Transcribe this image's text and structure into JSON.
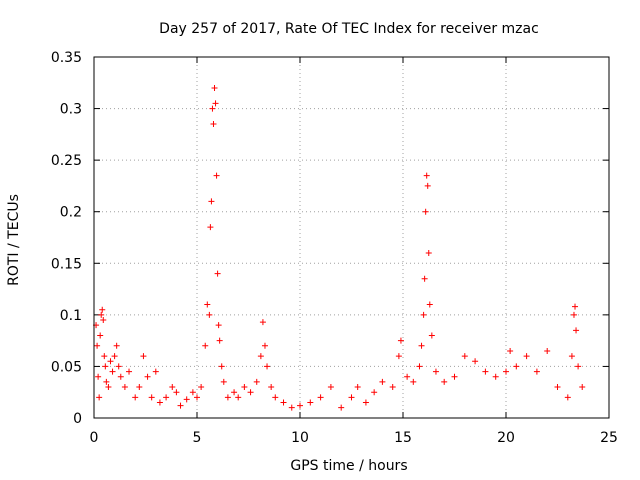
{
  "chart_data": {
    "type": "scatter",
    "title": "Day 257 of 2017, Rate Of TEC Index for receiver mzac",
    "xlabel": "GPS time / hours",
    "ylabel": "ROTI / TECUs",
    "xlim": [
      0,
      25
    ],
    "ylim": [
      0,
      0.35
    ],
    "xticks": [
      "0",
      "5",
      "10",
      "15",
      "20",
      "25"
    ],
    "yticks": [
      "0",
      "0.05",
      "0.1",
      "0.15",
      "0.2",
      "0.25",
      "0.3",
      "0.35"
    ],
    "grid": true,
    "marker": "+",
    "color": "#ff0000",
    "series": [
      {
        "name": "ROTI",
        "points": [
          [
            0.1,
            0.09
          ],
          [
            0.15,
            0.07
          ],
          [
            0.2,
            0.04
          ],
          [
            0.25,
            0.02
          ],
          [
            0.3,
            0.08
          ],
          [
            0.35,
            0.1
          ],
          [
            0.4,
            0.105
          ],
          [
            0.45,
            0.095
          ],
          [
            0.5,
            0.06
          ],
          [
            0.55,
            0.05
          ],
          [
            0.6,
            0.035
          ],
          [
            0.7,
            0.03
          ],
          [
            0.8,
            0.055
          ],
          [
            0.9,
            0.045
          ],
          [
            1.0,
            0.06
          ],
          [
            1.1,
            0.07
          ],
          [
            1.2,
            0.05
          ],
          [
            1.3,
            0.04
          ],
          [
            1.5,
            0.03
          ],
          [
            1.7,
            0.045
          ],
          [
            2.0,
            0.02
          ],
          [
            2.2,
            0.03
          ],
          [
            2.4,
            0.06
          ],
          [
            2.6,
            0.04
          ],
          [
            2.8,
            0.02
          ],
          [
            3.0,
            0.045
          ],
          [
            3.2,
            0.015
          ],
          [
            3.5,
            0.02
          ],
          [
            3.8,
            0.03
          ],
          [
            4.0,
            0.025
          ],
          [
            4.2,
            0.012
          ],
          [
            4.5,
            0.018
          ],
          [
            4.8,
            0.025
          ],
          [
            5.0,
            0.02
          ],
          [
            5.2,
            0.03
          ],
          [
            5.4,
            0.07
          ],
          [
            5.5,
            0.11
          ],
          [
            5.6,
            0.1
          ],
          [
            5.65,
            0.185
          ],
          [
            5.7,
            0.21
          ],
          [
            5.75,
            0.3
          ],
          [
            5.8,
            0.285
          ],
          [
            5.85,
            0.32
          ],
          [
            5.9,
            0.305
          ],
          [
            5.95,
            0.235
          ],
          [
            6.0,
            0.14
          ],
          [
            6.05,
            0.09
          ],
          [
            6.1,
            0.075
          ],
          [
            6.2,
            0.05
          ],
          [
            6.3,
            0.035
          ],
          [
            6.5,
            0.02
          ],
          [
            6.8,
            0.025
          ],
          [
            7.0,
            0.02
          ],
          [
            7.3,
            0.03
          ],
          [
            7.6,
            0.025
          ],
          [
            7.9,
            0.035
          ],
          [
            8.1,
            0.06
          ],
          [
            8.2,
            0.093
          ],
          [
            8.3,
            0.07
          ],
          [
            8.4,
            0.05
          ],
          [
            8.6,
            0.03
          ],
          [
            8.8,
            0.02
          ],
          [
            9.2,
            0.015
          ],
          [
            9.6,
            0.01
          ],
          [
            10.0,
            0.012
          ],
          [
            10.5,
            0.015
          ],
          [
            11.0,
            0.02
          ],
          [
            11.5,
            0.03
          ],
          [
            12.0,
            0.01
          ],
          [
            12.5,
            0.02
          ],
          [
            12.8,
            0.03
          ],
          [
            13.2,
            0.015
          ],
          [
            13.6,
            0.025
          ],
          [
            14.0,
            0.035
          ],
          [
            14.5,
            0.03
          ],
          [
            14.8,
            0.06
          ],
          [
            14.9,
            0.075
          ],
          [
            15.2,
            0.04
          ],
          [
            15.5,
            0.035
          ],
          [
            15.8,
            0.05
          ],
          [
            15.9,
            0.07
          ],
          [
            16.0,
            0.1
          ],
          [
            16.05,
            0.135
          ],
          [
            16.1,
            0.2
          ],
          [
            16.15,
            0.235
          ],
          [
            16.2,
            0.225
          ],
          [
            16.25,
            0.16
          ],
          [
            16.3,
            0.11
          ],
          [
            16.4,
            0.08
          ],
          [
            16.6,
            0.045
          ],
          [
            17.0,
            0.035
          ],
          [
            17.5,
            0.04
          ],
          [
            18.0,
            0.06
          ],
          [
            18.5,
            0.055
          ],
          [
            19.0,
            0.045
          ],
          [
            19.5,
            0.04
          ],
          [
            20.0,
            0.045
          ],
          [
            20.2,
            0.065
          ],
          [
            20.5,
            0.05
          ],
          [
            21.0,
            0.06
          ],
          [
            21.5,
            0.045
          ],
          [
            22.0,
            0.065
          ],
          [
            22.5,
            0.03
          ],
          [
            23.0,
            0.02
          ],
          [
            23.2,
            0.06
          ],
          [
            23.3,
            0.1
          ],
          [
            23.35,
            0.108
          ],
          [
            23.4,
            0.085
          ],
          [
            23.5,
            0.05
          ],
          [
            23.7,
            0.03
          ]
        ]
      }
    ]
  }
}
